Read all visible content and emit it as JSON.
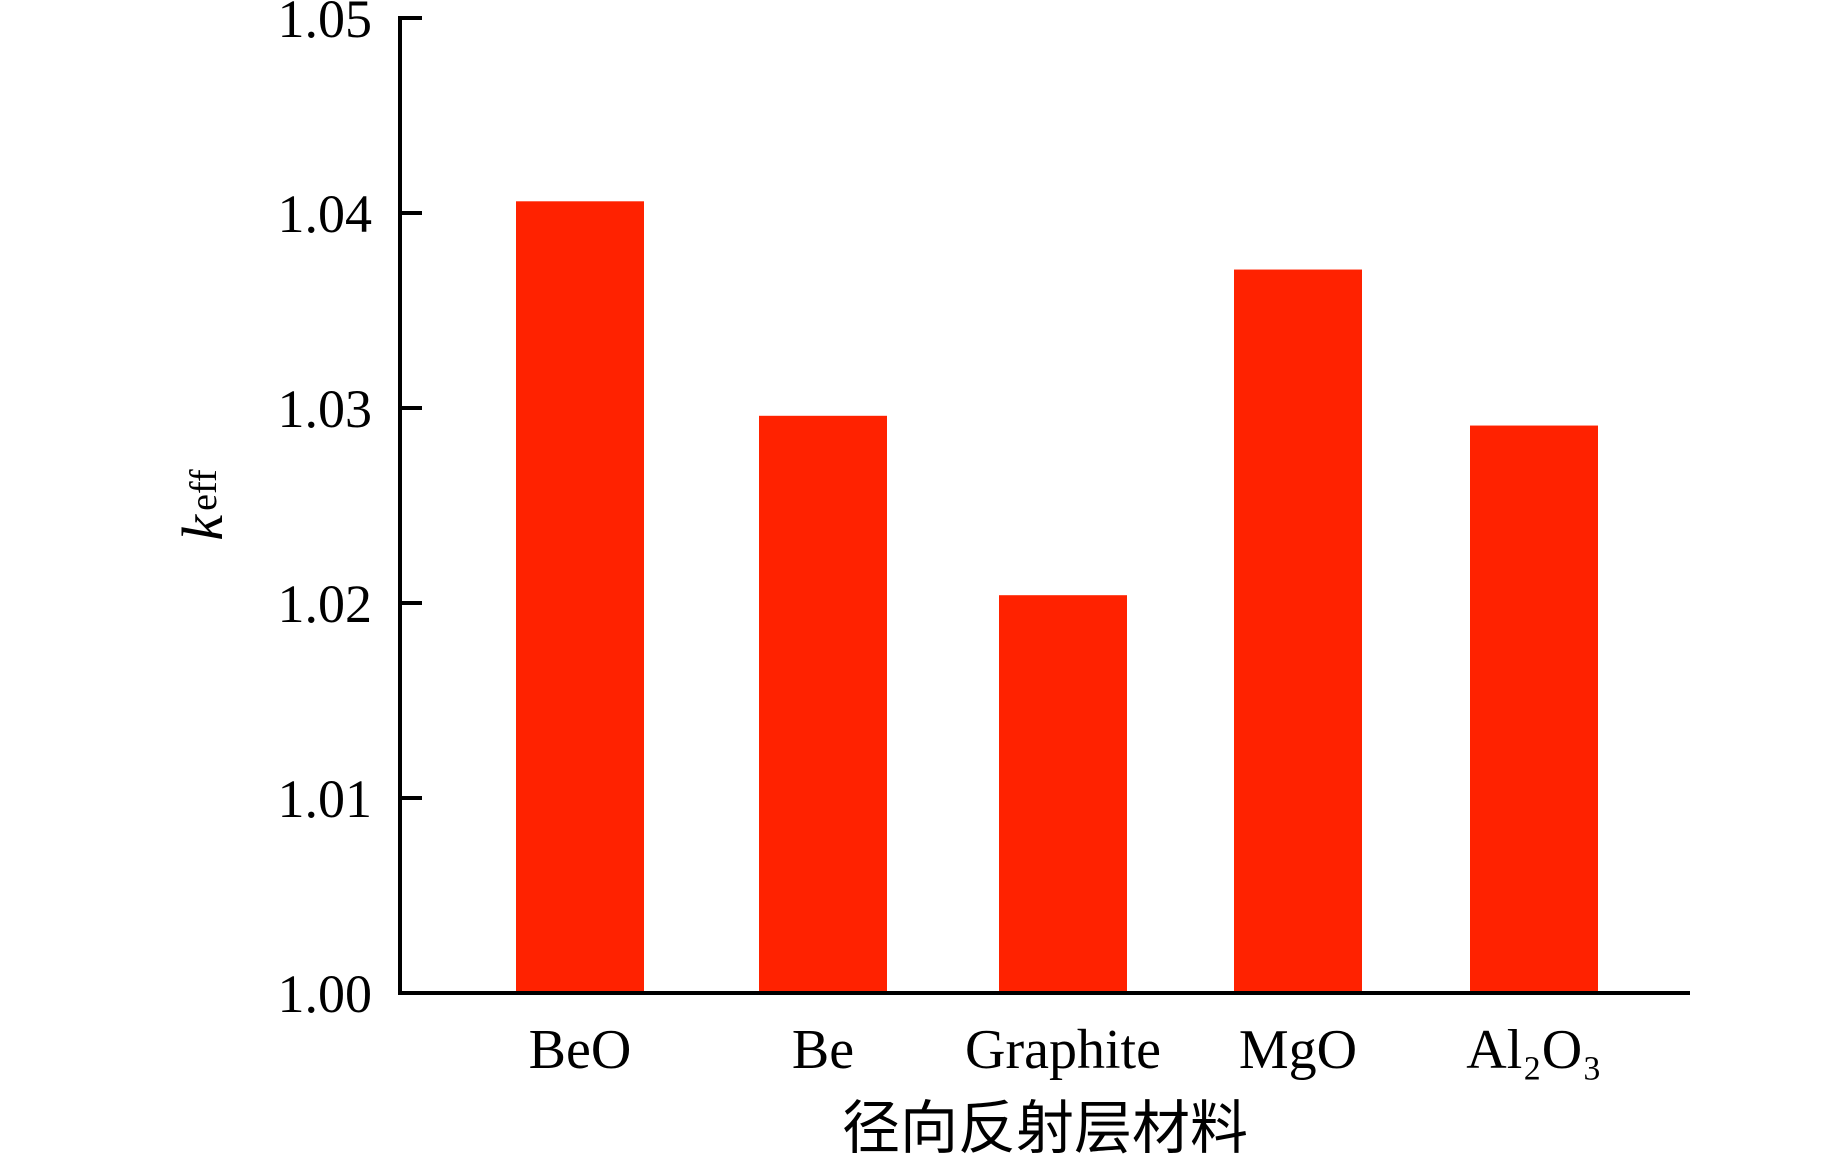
{
  "chart_data": {
    "type": "bar",
    "categories": [
      "BeO",
      "Be",
      "Graphite",
      "MgO",
      "Al₂O₃"
    ],
    "values": [
      1.0406,
      1.0296,
      1.0204,
      1.0371,
      1.0291
    ],
    "ylabel": {
      "main": "k",
      "sub": "eff"
    },
    "xlabel": "径向反射层材料",
    "ylim": [
      1.0,
      1.05
    ],
    "yticks": [
      "1.00",
      "1.01",
      "1.02",
      "1.03",
      "1.04",
      "1.05"
    ],
    "bar_color": "#ff2200",
    "grid": false,
    "legend": "none"
  }
}
